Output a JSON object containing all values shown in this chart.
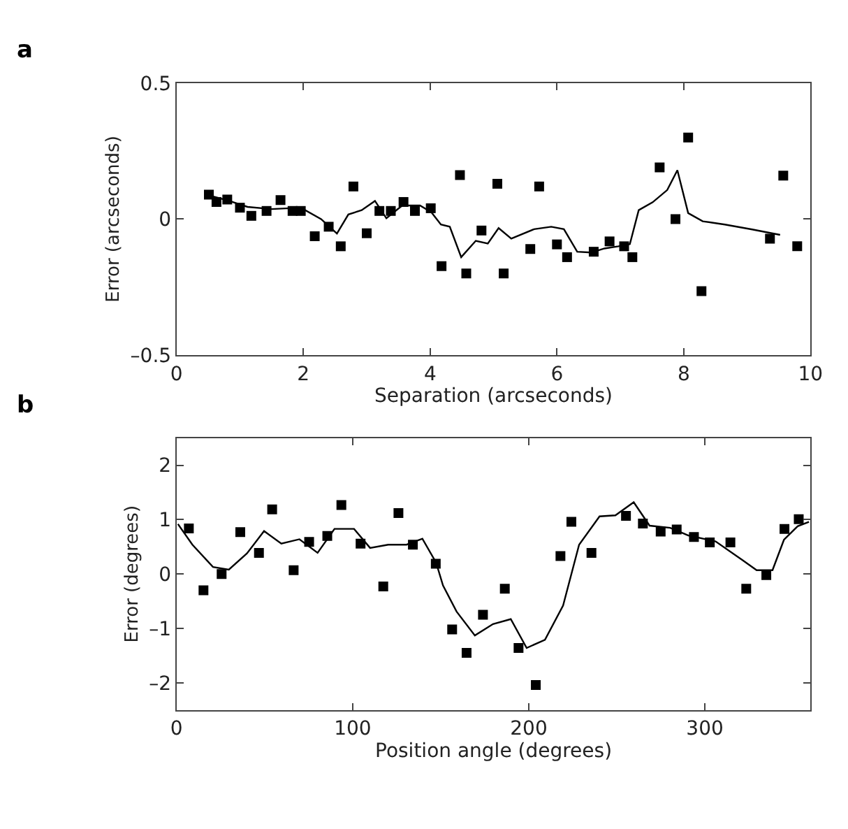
{
  "chart_data": [
    {
      "type": "scatter",
      "annotations": [
        "a"
      ],
      "xlabel": "Separation (arcseconds)",
      "ylabel": "Error (arcseconds)",
      "xlim": [
        0,
        10
      ],
      "xticks": [
        0,
        2,
        4,
        6,
        8,
        10
      ],
      "ylim": [
        -0.5,
        0.5
      ],
      "yticks": [
        {
          "value": -0.5,
          "label": "–0.5"
        },
        0,
        0.5
      ],
      "series": [
        {
          "marker": "square",
          "color": "#000000",
          "x": [
            0.51,
            0.63,
            0.8,
            1.0,
            1.18,
            1.42,
            1.64,
            1.83,
            1.96,
            2.18,
            2.4,
            2.59,
            2.79,
            3.0,
            3.2,
            3.38,
            3.58,
            3.76,
            4.01,
            4.18,
            4.47,
            4.57,
            4.81,
            5.06,
            5.16,
            5.58,
            5.72,
            6.0,
            6.16,
            6.58,
            6.83,
            7.06,
            7.19,
            7.62,
            7.87,
            8.07,
            8.28,
            9.36,
            9.57,
            9.79
          ],
          "values": [
            0.09,
            0.063,
            0.072,
            0.042,
            0.012,
            0.03,
            0.07,
            0.03,
            0.03,
            -0.063,
            -0.028,
            -0.1,
            0.12,
            -0.052,
            0.03,
            0.03,
            0.063,
            0.03,
            0.04,
            -0.173,
            0.162,
            -0.2,
            -0.042,
            0.13,
            -0.2,
            -0.11,
            0.12,
            -0.093,
            -0.14,
            -0.12,
            -0.082,
            -0.1,
            -0.14,
            0.19,
            0.0,
            0.3,
            -0.265,
            -0.072,
            0.16,
            -0.1
          ]
        },
        {
          "type": "line",
          "marker": "none",
          "color": "#000000",
          "x": [
            0.47,
            0.83,
            1.12,
            1.5,
            1.78,
            2.03,
            2.28,
            2.53,
            2.71,
            2.92,
            3.13,
            3.31,
            3.56,
            3.84,
            4.02,
            4.17,
            4.31,
            4.49,
            4.72,
            4.91,
            5.08,
            5.28,
            5.64,
            5.91,
            6.11,
            6.32,
            6.54,
            6.75,
            6.97,
            7.15,
            7.29,
            7.51,
            7.74,
            7.9,
            8.07,
            8.3,
            8.65,
            9.08,
            9.52
          ],
          "values": [
            0.09,
            0.067,
            0.045,
            0.037,
            0.04,
            0.033,
            0.0,
            -0.053,
            0.017,
            0.033,
            0.067,
            0.003,
            0.05,
            0.05,
            0.025,
            -0.02,
            -0.028,
            -0.14,
            -0.08,
            -0.09,
            -0.033,
            -0.072,
            -0.037,
            -0.028,
            -0.037,
            -0.12,
            -0.123,
            -0.108,
            -0.1,
            -0.092,
            0.033,
            0.062,
            0.107,
            0.18,
            0.022,
            -0.008,
            -0.02,
            -0.038,
            -0.058
          ]
        }
      ]
    },
    {
      "type": "scatter",
      "annotations": [
        "b"
      ],
      "xlabel": "Position angle (degrees)",
      "ylabel": "Error (degrees)",
      "xlim": [
        0,
        360
      ],
      "xticks": [
        0,
        100,
        200,
        300
      ],
      "ylim": [
        -2.5,
        2.5
      ],
      "yticks": [
        {
          "value": -2,
          "label": "–2"
        },
        {
          "value": -1,
          "label": "–1"
        },
        0,
        1,
        2
      ],
      "series": [
        {
          "marker": "square",
          "color": "#000000",
          "x": [
            7.0,
            15.3,
            25.6,
            36.2,
            46.8,
            54.3,
            66.5,
            75.3,
            85.6,
            93.6,
            104.5,
            117.4,
            126.0,
            134.2,
            147.2,
            156.5,
            164.7,
            174.0,
            186.4,
            194.2,
            204.0,
            218.0,
            224.2,
            235.6,
            255.2,
            264.8,
            274.9,
            284.0,
            293.8,
            302.8,
            314.5,
            323.5,
            334.9,
            345.2,
            353.3
          ],
          "values": [
            0.84,
            -0.3,
            0.0,
            0.77,
            0.39,
            1.19,
            0.07,
            0.59,
            0.7,
            1.27,
            0.56,
            -0.23,
            1.12,
            0.54,
            0.19,
            -1.02,
            -1.45,
            -0.75,
            -0.27,
            -1.36,
            -2.04,
            0.33,
            0.96,
            0.39,
            1.07,
            0.93,
            0.78,
            0.82,
            0.68,
            0.58,
            0.58,
            -0.27,
            -0.02,
            0.83,
            1.01
          ]
        },
        {
          "type": "line",
          "marker": "none",
          "color": "#000000",
          "x": [
            0.8,
            9,
            20.7,
            29.7,
            40,
            49.7,
            59.5,
            69.8,
            80.1,
            89.7,
            100.8,
            109.9,
            120.2,
            130.6,
            139.6,
            147.4,
            151.3,
            159,
            169.4,
            179.7,
            189.8,
            198.8,
            209.2,
            219.5,
            228.6,
            240.2,
            249.2,
            259.6,
            268.6,
            280.3,
            290.6,
            306.1,
            321.6,
            329.4,
            338.4,
            344.9,
            352.7,
            359.1
          ],
          "values": [
            0.92,
            0.54,
            0.13,
            0.08,
            0.38,
            0.79,
            0.56,
            0.64,
            0.39,
            0.83,
            0.83,
            0.48,
            0.54,
            0.54,
            0.65,
            0.21,
            -0.21,
            -0.69,
            -1.13,
            -0.92,
            -0.83,
            -1.36,
            -1.21,
            -0.58,
            0.54,
            1.06,
            1.08,
            1.32,
            0.89,
            0.85,
            0.71,
            0.6,
            0.25,
            0.07,
            0.07,
            0.63,
            0.88,
            0.96
          ]
        }
      ]
    }
  ]
}
